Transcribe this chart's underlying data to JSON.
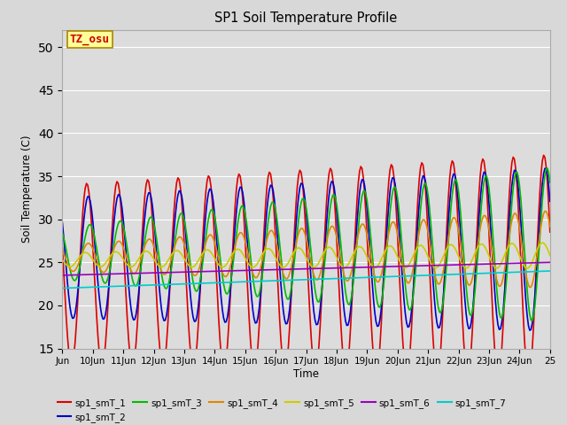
{
  "title": "SP1 Soil Temperature Profile",
  "xlabel": "Time",
  "ylabel": "Soil Temperature (C)",
  "ylim": [
    15,
    52
  ],
  "yticks": [
    15,
    20,
    25,
    30,
    35,
    40,
    45,
    50
  ],
  "annotation": "TZ_osu",
  "annotation_color": "#cc0000",
  "annotation_bg": "#ffff99",
  "annotation_border": "#aa8800",
  "fig_bg": "#d8d8d8",
  "plot_bg": "#dcdcdc",
  "series_colors": [
    "#dd0000",
    "#0000cc",
    "#00bb00",
    "#dd8800",
    "#cccc00",
    "#9900bb",
    "#00cccc"
  ],
  "series_labels": [
    "sp1_smT_1",
    "sp1_smT_2",
    "sp1_smT_3",
    "sp1_smT_4",
    "sp1_smT_5",
    "sp1_smT_6",
    "sp1_smT_7"
  ],
  "xtick_labels": [
    "Jun",
    "10Jun",
    "11Jun",
    "12Jun",
    "13Jun",
    "14Jun",
    "15Jun",
    "16Jun",
    "17Jun",
    "18Jun",
    "19Jun",
    "20Jun",
    "21Jun",
    "22Jun",
    "23Jun",
    "24Jun",
    "25"
  ],
  "linewidth": 1.2,
  "grid_color": "#ffffff",
  "legend_ncol": 6
}
